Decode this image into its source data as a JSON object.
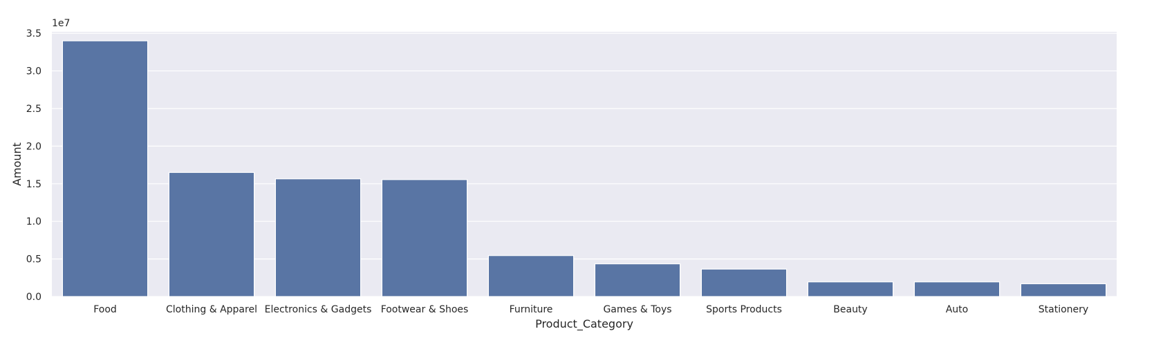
{
  "colors": {
    "background": "#ffffff",
    "plot_background": "#eaeaf2",
    "grid": "#ffffff",
    "bar": "#5975a4",
    "text": "#262626"
  },
  "chart_data": {
    "type": "bar",
    "title": "",
    "xlabel": "Product_Category",
    "ylabel": "Amount",
    "y_offset_label": "1e7",
    "categories": [
      "Food",
      "Clothing & Apparel",
      "Electronics & Gadgets",
      "Footwear & Shoes",
      "Furniture",
      "Games & Toys",
      "Sports Products",
      "Beauty",
      "Auto",
      "Stationery"
    ],
    "values": [
      34000000,
      16500000,
      15650000,
      15550000,
      5450000,
      4350000,
      3650000,
      1950000,
      1950000,
      1700000
    ],
    "ylim": [
      0,
      35200000
    ],
    "yticks": [
      0,
      5000000,
      10000000,
      15000000,
      20000000,
      25000000,
      30000000,
      35000000
    ],
    "ytick_labels": [
      "0.0",
      "0.5",
      "1.0",
      "1.5",
      "2.0",
      "2.5",
      "3.0",
      "3.5"
    ],
    "grid": true,
    "legend": "none"
  }
}
